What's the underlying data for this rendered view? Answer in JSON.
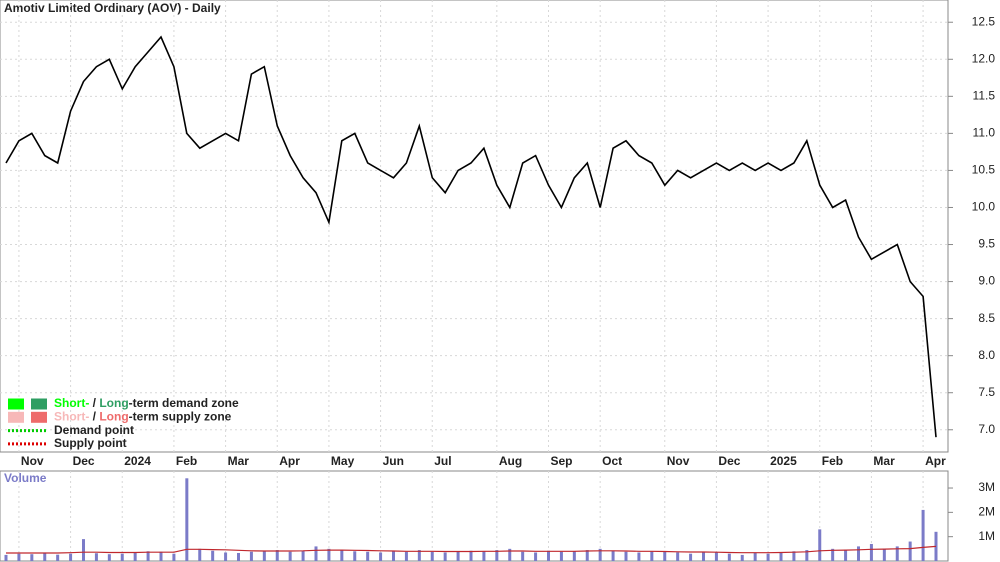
{
  "chart_data": {
    "type": "stock",
    "title": "Amotiv Limited Ordinary (AOV) - Daily",
    "volume_title": "Volume",
    "categories": [
      null,
      "Nov",
      null,
      null,
      null,
      "Dec",
      null,
      null,
      null,
      "2024",
      null,
      null,
      null,
      "Feb",
      null,
      null,
      null,
      "Mar",
      null,
      null,
      null,
      "Apr",
      null,
      null,
      null,
      "May",
      null,
      null,
      null,
      "Jun",
      null,
      null,
      null,
      "Jul",
      null,
      null,
      null,
      null,
      "Aug",
      null,
      null,
      null,
      "Sep",
      null,
      null,
      null,
      "Oct",
      null,
      null,
      null,
      null,
      "Nov",
      null,
      null,
      null,
      "Dec",
      null,
      null,
      null,
      "2025",
      null,
      null,
      null,
      "Feb",
      null,
      null,
      null,
      "Mar",
      null,
      null,
      null,
      "Apr",
      null
    ],
    "series": [
      {
        "name": "Price",
        "color": "#000000",
        "values": [
          10.6,
          10.9,
          11.0,
          10.7,
          10.6,
          11.3,
          11.7,
          11.9,
          12.0,
          11.6,
          11.9,
          12.1,
          12.3,
          11.9,
          11.0,
          10.8,
          10.9,
          11.0,
          10.9,
          11.8,
          11.9,
          11.1,
          10.7,
          10.4,
          10.2,
          9.8,
          10.9,
          11.0,
          10.6,
          10.5,
          10.4,
          10.6,
          11.1,
          10.4,
          10.2,
          10.5,
          10.6,
          10.8,
          10.3,
          10.0,
          10.6,
          10.7,
          10.3,
          10.0,
          10.4,
          10.6,
          10.0,
          10.8,
          10.9,
          10.7,
          10.6,
          10.3,
          10.5,
          10.4,
          10.5,
          10.6,
          10.5,
          10.6,
          10.5,
          10.6,
          10.5,
          10.6,
          10.9,
          10.3,
          10.0,
          10.1,
          9.6,
          9.3,
          9.4,
          9.5,
          9.0,
          8.8,
          6.9
        ]
      },
      {
        "name": "Volume",
        "color": "#7b7bc8",
        "axis": "y2",
        "values": [
          250000,
          300000,
          280000,
          350000,
          260000,
          300000,
          900000,
          320000,
          280000,
          300000,
          350000,
          400000,
          380000,
          300000,
          3400000,
          500000,
          420000,
          350000,
          330000,
          380000,
          400000,
          450000,
          380000,
          420000,
          600000,
          500000,
          450000,
          400000,
          380000,
          350000,
          420000,
          380000,
          450000,
          380000,
          350000,
          380000,
          420000,
          400000,
          450000,
          500000,
          380000,
          350000,
          420000,
          380000,
          400000,
          450000,
          500000,
          420000,
          380000,
          350000,
          400000,
          380000,
          350000,
          300000,
          380000,
          350000,
          300000,
          250000,
          350000,
          300000,
          350000,
          400000,
          450000,
          1300000,
          500000,
          450000,
          600000,
          700000,
          500000,
          600000,
          800000,
          2100000,
          1200000
        ]
      },
      {
        "name": "Volume average",
        "color": "#c0282d",
        "axis": "y2",
        "values": [
          330000,
          330000,
          330000,
          330000,
          330000,
          340000,
          360000,
          360000,
          350000,
          350000,
          350000,
          360000,
          360000,
          360000,
          480000,
          480000,
          470000,
          460000,
          440000,
          420000,
          410000,
          410000,
          410000,
          420000,
          440000,
          450000,
          450000,
          440000,
          430000,
          420000,
          410000,
          400000,
          400000,
          400000,
          390000,
          390000,
          390000,
          400000,
          400000,
          410000,
          410000,
          400000,
          400000,
          400000,
          400000,
          410000,
          420000,
          420000,
          410000,
          400000,
          400000,
          390000,
          380000,
          370000,
          370000,
          360000,
          350000,
          340000,
          340000,
          340000,
          350000,
          360000,
          380000,
          420000,
          440000,
          450000,
          460000,
          480000,
          490000,
          500000,
          510000,
          560000,
          600000
        ]
      }
    ],
    "ylim": [
      6.7,
      12.8
    ],
    "yticks": [
      {
        "value": 7.0,
        "label": "7.0"
      },
      7.5,
      {
        "value": 8.0,
        "label": "8.0"
      },
      8.5,
      {
        "value": 9.0,
        "label": "9.0"
      },
      9.5,
      {
        "value": 10.0,
        "label": "10.0"
      },
      10.5,
      {
        "value": 11.0,
        "label": "11.0"
      },
      11.5,
      {
        "value": 12.0,
        "label": "12.0"
      },
      12.5
    ],
    "y2lim": [
      0,
      3700000
    ],
    "y2ticks": [
      {
        "value": 1000000,
        "label": "1M"
      },
      {
        "value": 2000000,
        "label": "2M"
      },
      {
        "value": 3000000,
        "label": "3M"
      }
    ],
    "grid": true,
    "legend": [
      {
        "parts": [
          "Short-",
          " / ",
          "Long",
          "-term demand zone"
        ],
        "colors": [
          "#00ff00",
          "#2e9e62"
        ]
      },
      {
        "parts": [
          "Short-",
          " / ",
          "Long",
          "-term supply zone"
        ],
        "colors": [
          "#f7b8b8",
          "#ee6b6b"
        ]
      },
      {
        "parts": [
          "Demand point"
        ],
        "colors": [
          "#00cc00"
        ]
      },
      {
        "parts": [
          "Supply point"
        ],
        "colors": [
          "#dd0000"
        ]
      }
    ]
  }
}
